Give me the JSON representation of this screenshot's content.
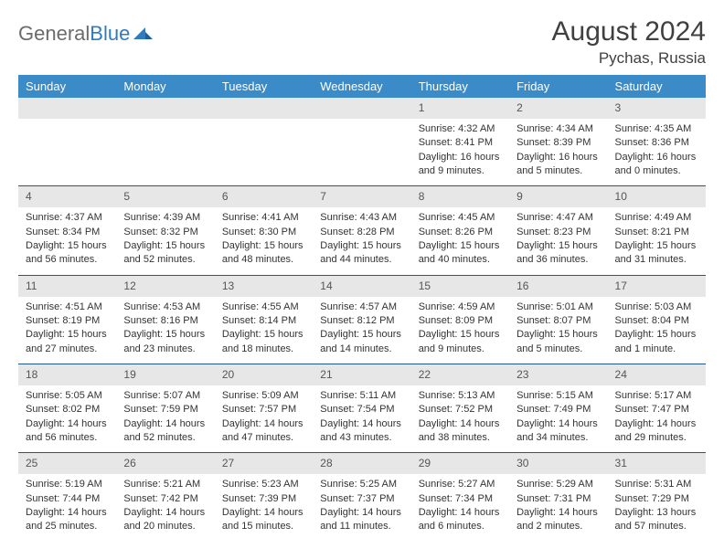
{
  "brand": {
    "name_a": "General",
    "name_b": "Blue"
  },
  "title": "August 2024",
  "location": "Pychas, Russia",
  "colors": {
    "header_bg": "#3b8bc9",
    "header_text": "#ffffff",
    "daynum_bg": "#e7e7e7",
    "row_border": "#20588a",
    "brand_gray": "#6b6b6b",
    "brand_blue": "#2f7bbf"
  },
  "weekdays": [
    "Sunday",
    "Monday",
    "Tuesday",
    "Wednesday",
    "Thursday",
    "Friday",
    "Saturday"
  ],
  "days": [
    {
      "n": 1,
      "sunrise": "4:32 AM",
      "sunset": "8:41 PM",
      "daylight": "16 hours and 9 minutes."
    },
    {
      "n": 2,
      "sunrise": "4:34 AM",
      "sunset": "8:39 PM",
      "daylight": "16 hours and 5 minutes."
    },
    {
      "n": 3,
      "sunrise": "4:35 AM",
      "sunset": "8:36 PM",
      "daylight": "16 hours and 0 minutes."
    },
    {
      "n": 4,
      "sunrise": "4:37 AM",
      "sunset": "8:34 PM",
      "daylight": "15 hours and 56 minutes."
    },
    {
      "n": 5,
      "sunrise": "4:39 AM",
      "sunset": "8:32 PM",
      "daylight": "15 hours and 52 minutes."
    },
    {
      "n": 6,
      "sunrise": "4:41 AM",
      "sunset": "8:30 PM",
      "daylight": "15 hours and 48 minutes."
    },
    {
      "n": 7,
      "sunrise": "4:43 AM",
      "sunset": "8:28 PM",
      "daylight": "15 hours and 44 minutes."
    },
    {
      "n": 8,
      "sunrise": "4:45 AM",
      "sunset": "8:26 PM",
      "daylight": "15 hours and 40 minutes."
    },
    {
      "n": 9,
      "sunrise": "4:47 AM",
      "sunset": "8:23 PM",
      "daylight": "15 hours and 36 minutes."
    },
    {
      "n": 10,
      "sunrise": "4:49 AM",
      "sunset": "8:21 PM",
      "daylight": "15 hours and 31 minutes."
    },
    {
      "n": 11,
      "sunrise": "4:51 AM",
      "sunset": "8:19 PM",
      "daylight": "15 hours and 27 minutes."
    },
    {
      "n": 12,
      "sunrise": "4:53 AM",
      "sunset": "8:16 PM",
      "daylight": "15 hours and 23 minutes."
    },
    {
      "n": 13,
      "sunrise": "4:55 AM",
      "sunset": "8:14 PM",
      "daylight": "15 hours and 18 minutes."
    },
    {
      "n": 14,
      "sunrise": "4:57 AM",
      "sunset": "8:12 PM",
      "daylight": "15 hours and 14 minutes."
    },
    {
      "n": 15,
      "sunrise": "4:59 AM",
      "sunset": "8:09 PM",
      "daylight": "15 hours and 9 minutes."
    },
    {
      "n": 16,
      "sunrise": "5:01 AM",
      "sunset": "8:07 PM",
      "daylight": "15 hours and 5 minutes."
    },
    {
      "n": 17,
      "sunrise": "5:03 AM",
      "sunset": "8:04 PM",
      "daylight": "15 hours and 1 minute."
    },
    {
      "n": 18,
      "sunrise": "5:05 AM",
      "sunset": "8:02 PM",
      "daylight": "14 hours and 56 minutes."
    },
    {
      "n": 19,
      "sunrise": "5:07 AM",
      "sunset": "7:59 PM",
      "daylight": "14 hours and 52 minutes."
    },
    {
      "n": 20,
      "sunrise": "5:09 AM",
      "sunset": "7:57 PM",
      "daylight": "14 hours and 47 minutes."
    },
    {
      "n": 21,
      "sunrise": "5:11 AM",
      "sunset": "7:54 PM",
      "daylight": "14 hours and 43 minutes."
    },
    {
      "n": 22,
      "sunrise": "5:13 AM",
      "sunset": "7:52 PM",
      "daylight": "14 hours and 38 minutes."
    },
    {
      "n": 23,
      "sunrise": "5:15 AM",
      "sunset": "7:49 PM",
      "daylight": "14 hours and 34 minutes."
    },
    {
      "n": 24,
      "sunrise": "5:17 AM",
      "sunset": "7:47 PM",
      "daylight": "14 hours and 29 minutes."
    },
    {
      "n": 25,
      "sunrise": "5:19 AM",
      "sunset": "7:44 PM",
      "daylight": "14 hours and 25 minutes."
    },
    {
      "n": 26,
      "sunrise": "5:21 AM",
      "sunset": "7:42 PM",
      "daylight": "14 hours and 20 minutes."
    },
    {
      "n": 27,
      "sunrise": "5:23 AM",
      "sunset": "7:39 PM",
      "daylight": "14 hours and 15 minutes."
    },
    {
      "n": 28,
      "sunrise": "5:25 AM",
      "sunset": "7:37 PM",
      "daylight": "14 hours and 11 minutes."
    },
    {
      "n": 29,
      "sunrise": "5:27 AM",
      "sunset": "7:34 PM",
      "daylight": "14 hours and 6 minutes."
    },
    {
      "n": 30,
      "sunrise": "5:29 AM",
      "sunset": "7:31 PM",
      "daylight": "14 hours and 2 minutes."
    },
    {
      "n": 31,
      "sunrise": "5:31 AM",
      "sunset": "7:29 PM",
      "daylight": "13 hours and 57 minutes."
    }
  ],
  "start_weekday_index": 4,
  "labels": {
    "sunrise": "Sunrise:",
    "sunset": "Sunset:",
    "daylight": "Daylight:"
  }
}
